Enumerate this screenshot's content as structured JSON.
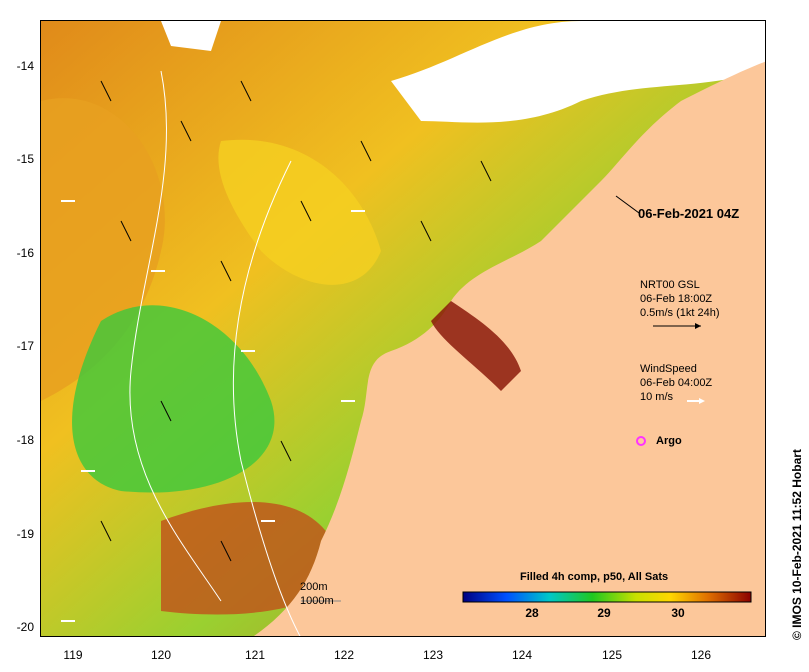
{
  "map": {
    "date_label": "06-Feb-2021 04Z",
    "lat_ticks": [
      "-14",
      "-15",
      "-16",
      "-17",
      "-18",
      "-19",
      "-20"
    ],
    "lon_ticks": [
      "119",
      "120",
      "121",
      "122",
      "123",
      "124",
      "125",
      "126"
    ],
    "current_legend": {
      "line1": "NRT00 GSL",
      "line2": "06-Feb 18:00Z",
      "line3": "0.5m/s (1kt 24h)"
    },
    "wind_legend": {
      "line1": "WindSpeed",
      "line2": "06-Feb 04:00Z",
      "line3": "10 m/s"
    },
    "argo_label": "Argo",
    "contour_legend": {
      "line1": "200m",
      "line2": "1000m"
    },
    "colorbar": {
      "title": "Filled 4h comp, p50, All Sats",
      "ticks": [
        "28",
        "29",
        "30"
      ]
    },
    "credit": "© IMOS 10-Feb-2021 11:52 Hobart",
    "colors": {
      "land": "#fcc79a",
      "cloud": "#ffffff",
      "argo": "#ff33ff"
    }
  }
}
